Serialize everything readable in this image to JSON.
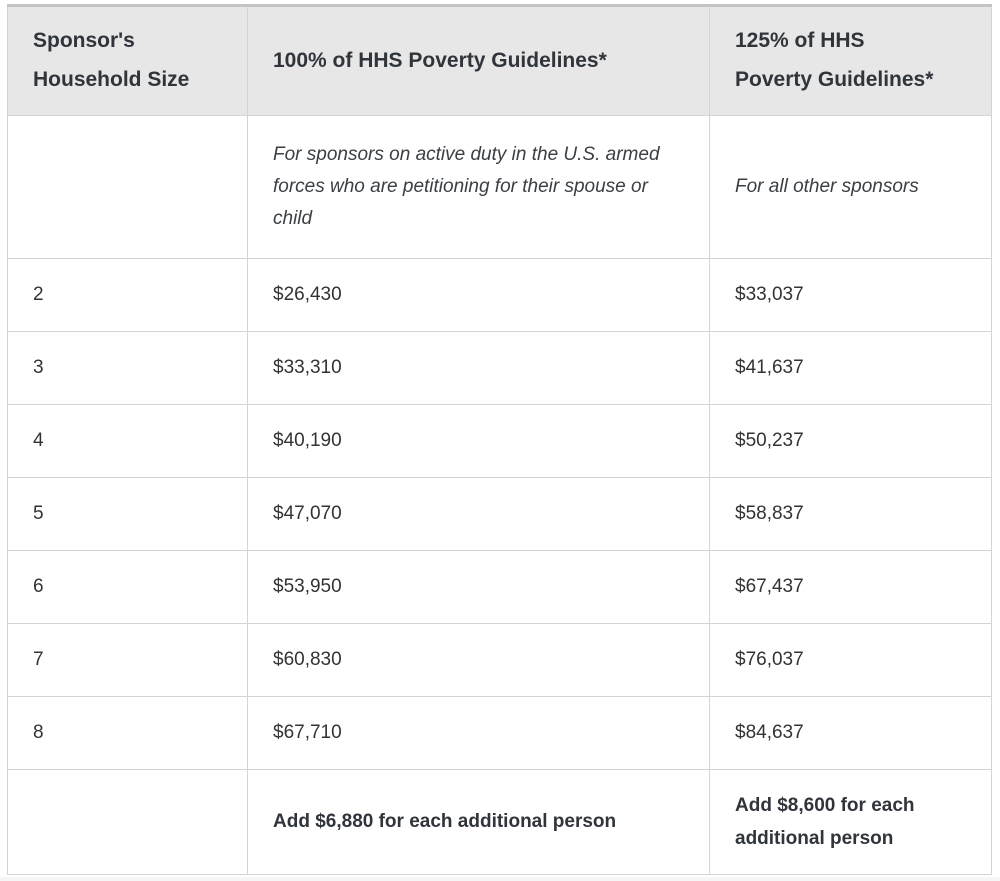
{
  "colors": {
    "header_bg": "#e7e7e7",
    "cell_border": "#d4d4d4",
    "table_top_border": "#c3c3c3",
    "text": "#333333",
    "page_bg_below_table": "#f6f6f6"
  },
  "table": {
    "headers": [
      {
        "label": "Sponsor's Household Size"
      },
      {
        "label": "100% of HHS Poverty Guidelines*"
      },
      {
        "label": "125% of HHS Poverty Guidelines*"
      }
    ],
    "subheaders": {
      "col1": "",
      "col2": "For sponsors on active duty in the U.S. armed forces who are petitioning for their spouse or child",
      "col3": "For all other sponsors"
    },
    "rows": [
      {
        "household_size": "2",
        "pct100": "$26,430",
        "pct125": "$33,037"
      },
      {
        "household_size": "3",
        "pct100": "$33,310",
        "pct125": "$41,637"
      },
      {
        "household_size": "4",
        "pct100": "$40,190",
        "pct125": "$50,237"
      },
      {
        "household_size": "5",
        "pct100": "$47,070",
        "pct125": "$58,837"
      },
      {
        "household_size": "6",
        "pct100": "$53,950",
        "pct125": "$67,437"
      },
      {
        "household_size": "7",
        "pct100": "$60,830",
        "pct125": "$76,037"
      },
      {
        "household_size": "8",
        "pct100": "$67,710",
        "pct125": "$84,637"
      }
    ],
    "footer": {
      "col1": "",
      "col2": "Add $6,880 for each additional person",
      "col3": "Add $8,600 for each additional person"
    }
  }
}
